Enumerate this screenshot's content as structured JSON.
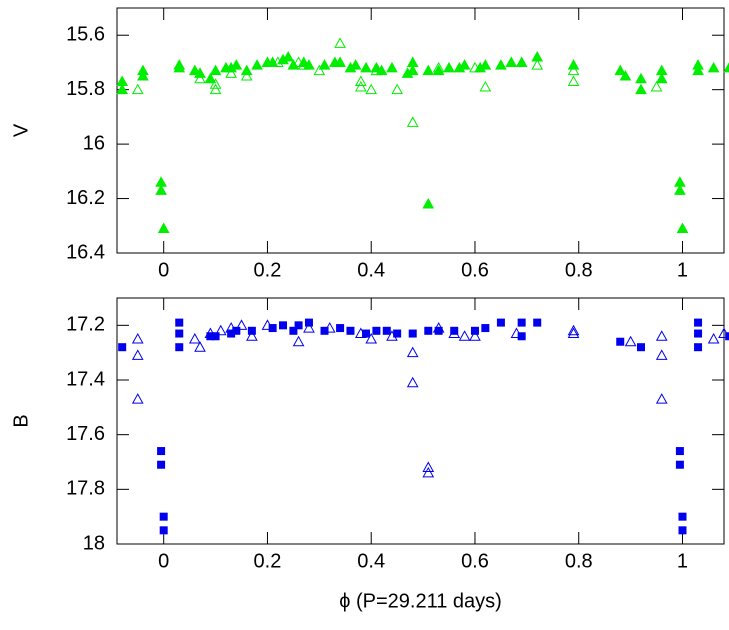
{
  "chart_data": [
    {
      "type": "scatter",
      "ylabel": "V",
      "xlim": [
        -0.09,
        1.08
      ],
      "ylim": [
        16.4,
        15.5
      ],
      "xticks": [
        0,
        0.2,
        0.4,
        0.6,
        0.8,
        1
      ],
      "yticks": [
        15.6,
        15.8,
        16,
        16.2,
        16.4
      ],
      "series": [
        {
          "color": "#00ee00",
          "marker": "filled-triangle",
          "x": [
            -0.08,
            -0.08,
            -0.04,
            -0.04,
            0.03,
            0.03,
            0.06,
            0.07,
            0.09,
            0.1,
            0.12,
            0.13,
            0.14,
            0.16,
            0.18,
            0.2,
            0.21,
            0.23,
            0.24,
            0.25,
            0.27,
            0.28,
            0.31,
            0.33,
            0.34,
            0.36,
            0.37,
            0.39,
            0.41,
            0.42,
            0.44,
            0.47,
            0.48,
            0.48,
            0.51,
            0.53,
            0.55,
            0.57,
            0.58,
            0.61,
            0.62,
            0.65,
            0.67,
            0.69,
            0.72,
            0.79,
            0.88,
            0.89,
            0.92,
            0.92,
            0.96,
            0.96,
            -0.005,
            -0.005,
            0,
            0.995,
            0.995,
            1.0,
            0.51,
            1.03,
            1.03,
            1.06,
            1.09
          ],
          "values": [
            15.77,
            15.8,
            15.73,
            15.75,
            15.71,
            15.72,
            15.73,
            15.74,
            15.76,
            15.73,
            15.72,
            15.72,
            15.71,
            15.73,
            15.71,
            15.7,
            15.7,
            15.69,
            15.68,
            15.71,
            15.7,
            15.71,
            15.71,
            15.7,
            15.7,
            15.72,
            15.71,
            15.72,
            15.72,
            15.73,
            15.72,
            15.74,
            15.7,
            15.73,
            15.73,
            15.73,
            15.72,
            15.72,
            15.71,
            15.72,
            15.71,
            15.71,
            15.7,
            15.7,
            15.68,
            15.71,
            15.73,
            15.75,
            15.76,
            15.8,
            15.73,
            15.76,
            16.14,
            16.17,
            16.31,
            16.14,
            16.17,
            16.31,
            16.22,
            15.71,
            15.73,
            15.72,
            15.72
          ]
        },
        {
          "color": "#00ee00",
          "marker": "open-triangle",
          "x": [
            -0.05,
            0.07,
            0.1,
            0.1,
            0.13,
            0.16,
            0.22,
            0.26,
            0.27,
            0.3,
            0.34,
            0.38,
            0.38,
            0.4,
            0.45,
            0.48,
            0.62,
            0.72,
            0.79,
            0.79,
            0.95,
            0.41,
            0.53,
            0.6
          ],
          "values": [
            15.8,
            15.76,
            15.8,
            15.78,
            15.74,
            15.75,
            15.7,
            15.7,
            15.71,
            15.73,
            15.63,
            15.77,
            15.79,
            15.8,
            15.8,
            15.92,
            15.79,
            15.71,
            15.73,
            15.77,
            15.79,
            15.73,
            15.72,
            15.72
          ]
        }
      ]
    },
    {
      "type": "scatter",
      "ylabel": "B",
      "xlabel": "ϕ (P=29.211 days)",
      "xlim": [
        -0.09,
        1.08
      ],
      "ylim": [
        18,
        17.1
      ],
      "xticks": [
        0,
        0.2,
        0.4,
        0.6,
        0.8,
        1
      ],
      "yticks": [
        17.2,
        17.4,
        17.6,
        17.8,
        18
      ],
      "series": [
        {
          "color": "#0000ee",
          "marker": "filled-square",
          "x": [
            -0.08,
            0.03,
            0.03,
            0.03,
            -0.005,
            -0.005,
            0,
            0,
            0.09,
            0.1,
            0.13,
            0.14,
            0.17,
            0.21,
            0.23,
            0.25,
            0.26,
            0.28,
            0.31,
            0.34,
            0.36,
            0.39,
            0.41,
            0.43,
            0.45,
            0.48,
            0.51,
            0.53,
            0.56,
            0.6,
            0.62,
            0.65,
            0.69,
            0.69,
            0.72,
            0.88,
            0.92,
            1.03,
            1.03,
            1.03,
            0.995,
            0.995,
            1.0,
            1.0,
            1.09
          ],
          "values": [
            17.28,
            17.19,
            17.23,
            17.28,
            17.66,
            17.71,
            17.9,
            17.95,
            17.24,
            17.24,
            17.23,
            17.22,
            17.22,
            17.21,
            17.2,
            17.22,
            17.2,
            17.19,
            17.22,
            17.21,
            17.22,
            17.23,
            17.22,
            17.22,
            17.23,
            17.23,
            17.22,
            17.22,
            17.22,
            17.22,
            17.21,
            17.19,
            17.19,
            17.24,
            17.19,
            17.26,
            17.28,
            17.19,
            17.23,
            17.28,
            17.66,
            17.71,
            17.9,
            17.95,
            17.24
          ]
        },
        {
          "color": "#0000ee",
          "marker": "open-triangle",
          "x": [
            -0.05,
            -0.05,
            -0.05,
            0.06,
            0.07,
            0.09,
            0.11,
            0.13,
            0.15,
            0.17,
            0.2,
            0.26,
            0.28,
            0.32,
            0.38,
            0.4,
            0.44,
            0.48,
            0.48,
            0.51,
            0.51,
            0.53,
            0.56,
            0.58,
            0.6,
            0.68,
            0.79,
            0.79,
            0.9,
            0.96,
            0.96,
            0.96,
            1.06,
            1.08
          ],
          "values": [
            17.25,
            17.31,
            17.47,
            17.25,
            17.28,
            17.23,
            17.22,
            17.21,
            17.2,
            17.24,
            17.2,
            17.26,
            17.21,
            17.21,
            17.23,
            17.25,
            17.24,
            17.3,
            17.41,
            17.72,
            17.74,
            17.21,
            17.23,
            17.24,
            17.24,
            17.23,
            17.22,
            17.23,
            17.26,
            17.24,
            17.31,
            17.47,
            17.25,
            17.23
          ]
        }
      ]
    }
  ]
}
